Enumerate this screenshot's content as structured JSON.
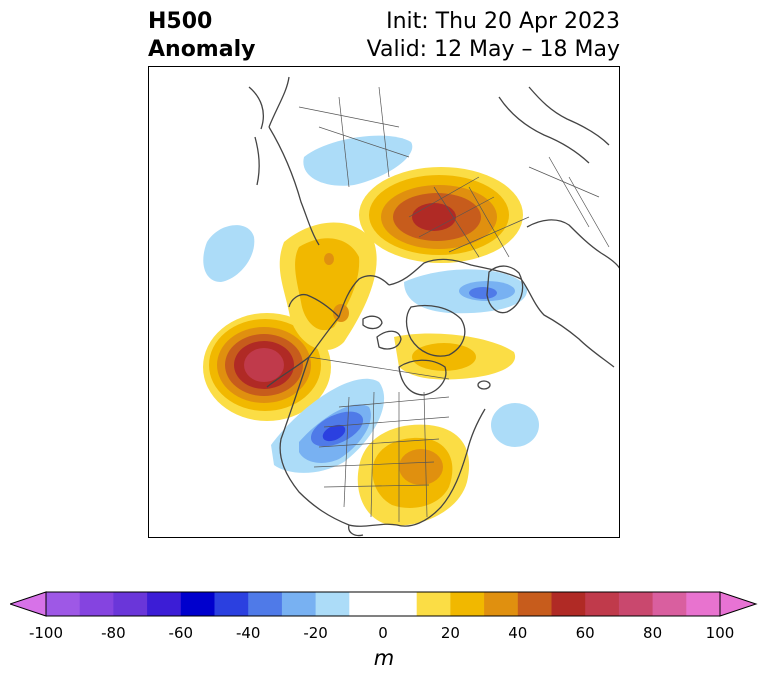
{
  "title": {
    "left_line1": "H500",
    "left_line2": "Anomaly",
    "right_line1": "Init: Thu 20 Apr 2023",
    "right_line2": "Valid: 12 May – 18 May"
  },
  "map": {
    "projection": "north-polar-stereographic",
    "field": "500 hPa geopotential height anomaly",
    "features": [
      {
        "kind": "positive",
        "level": 70,
        "region": "Northeast Pacific / Gulf of Alaska"
      },
      {
        "kind": "positive",
        "level": 60,
        "region": "Northwest Russia / Scandinavia"
      },
      {
        "kind": "positive",
        "level": 30,
        "region": "Eastern United States"
      },
      {
        "kind": "positive",
        "level": 20,
        "region": "Canadian Arctic / Hudson Bay"
      },
      {
        "kind": "positive",
        "level": 20,
        "region": "Eastern Siberia / Bering"
      },
      {
        "kind": "negative",
        "level": -50,
        "region": "Central / Western United States"
      },
      {
        "kind": "negative",
        "level": -30,
        "region": "Central Arctic / Laptev Sea"
      },
      {
        "kind": "negative",
        "level": -20,
        "region": "East Asia"
      },
      {
        "kind": "negative",
        "level": -20,
        "region": "North Pacific"
      },
      {
        "kind": "negative",
        "level": -20,
        "region": "North Atlantic"
      }
    ]
  },
  "colorbar": {
    "unit": "m",
    "ticks": [
      "-100",
      "-80",
      "-60",
      "-40",
      "-20",
      "0",
      "20",
      "40",
      "60",
      "80",
      "100"
    ],
    "min": -100,
    "max": 100,
    "extend": "both",
    "bins": [
      {
        "from": -100,
        "to": -90,
        "color": "#9e58e6"
      },
      {
        "from": -90,
        "to": -80,
        "color": "#8544e0"
      },
      {
        "from": -80,
        "to": -70,
        "color": "#6a36d9"
      },
      {
        "from": -70,
        "to": -60,
        "color": "#3c1dd6"
      },
      {
        "from": -60,
        "to": -50,
        "color": "#0000cd"
      },
      {
        "from": -50,
        "to": -40,
        "color": "#2b40e0"
      },
      {
        "from": -40,
        "to": -30,
        "color": "#4f7ae8"
      },
      {
        "from": -30,
        "to": -20,
        "color": "#78b1f2"
      },
      {
        "from": -20,
        "to": -10,
        "color": "#acdcf8"
      },
      {
        "from": -10,
        "to": 0,
        "color": "#ffffff"
      },
      {
        "from": 0,
        "to": 10,
        "color": "#ffffff"
      },
      {
        "from": 10,
        "to": 20,
        "color": "#fbdd45"
      },
      {
        "from": 20,
        "to": 30,
        "color": "#f1b800"
      },
      {
        "from": 30,
        "to": 40,
        "color": "#e0900f"
      },
      {
        "from": 40,
        "to": 50,
        "color": "#c75c1c"
      },
      {
        "from": 50,
        "to": 60,
        "color": "#b02a25"
      },
      {
        "from": 60,
        "to": 70,
        "color": "#c03a4b"
      },
      {
        "from": 70,
        "to": 80,
        "color": "#c9486e"
      },
      {
        "from": 80,
        "to": 90,
        "color": "#d95f9f"
      },
      {
        "from": 90,
        "to": 100,
        "color": "#e873cf"
      }
    ],
    "under_color": "#d772e8",
    "over_color": "#e873d4"
  }
}
